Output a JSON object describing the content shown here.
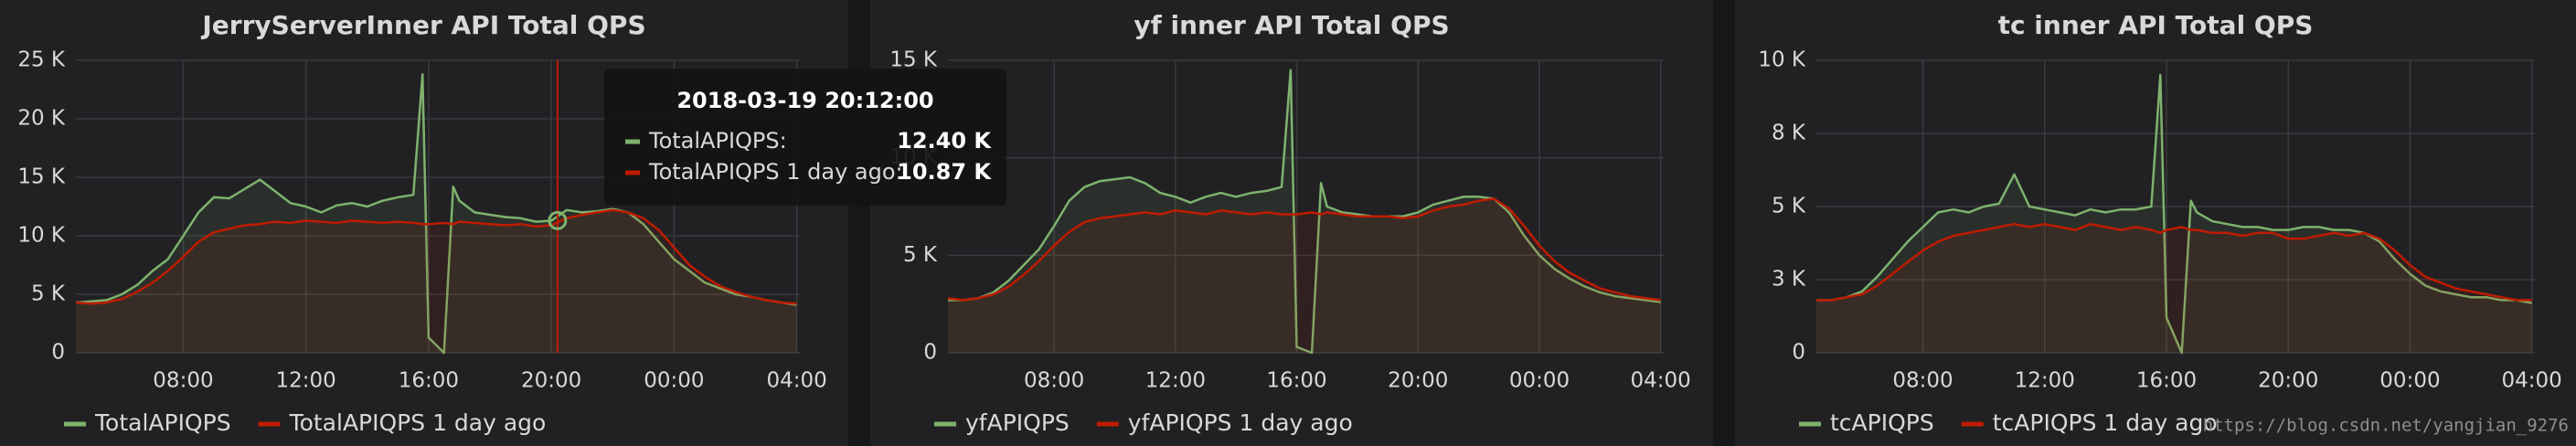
{
  "chart_data": [
    {
      "type": "line",
      "title": "JerryServerInner API Total QPS",
      "x": [
        4.5,
        5,
        5.5,
        6,
        6.5,
        7,
        7.5,
        8,
        8.5,
        9,
        9.5,
        10,
        10.5,
        11,
        11.5,
        12,
        12.5,
        13,
        13.5,
        14,
        14.5,
        15,
        15.5,
        15.8,
        16,
        16.5,
        16.8,
        17,
        17.5,
        18,
        18.5,
        19,
        19.5,
        20,
        20.5,
        21,
        21.5,
        22,
        22.5,
        23,
        23.5,
        24,
        24.5,
        25,
        25.5,
        26,
        26.5,
        27,
        27.5,
        28
      ],
      "xlim": [
        4.5,
        28.1
      ],
      "xticks": [
        {
          "value": 8,
          "label": "08:00"
        },
        {
          "value": 12,
          "label": "12:00"
        },
        {
          "value": 16,
          "label": "16:00"
        },
        {
          "value": 20,
          "label": "20:00"
        },
        {
          "value": 24,
          "label": "00:00"
        },
        {
          "value": 28,
          "label": "04:00"
        }
      ],
      "ylim": [
        0,
        25000
      ],
      "yticks": [
        0,
        {
          "value": 5000,
          "label": "5 K"
        },
        {
          "value": 10000,
          "label": "10 K"
        },
        {
          "value": 15000,
          "label": "15 K"
        },
        {
          "value": 20000,
          "label": "20 K"
        },
        {
          "value": 25000,
          "label": "25 K"
        }
      ],
      "grid": true,
      "series": [
        {
          "name": "TotalAPIQPS",
          "color": "#7eb26d",
          "values": [
            4300,
            4400,
            4500,
            5000,
            5800,
            7000,
            8000,
            10000,
            12000,
            13300,
            13200,
            14000,
            14800,
            13800,
            12800,
            12500,
            12000,
            12600,
            12800,
            12500,
            13000,
            13300,
            13500,
            23800,
            1300,
            0,
            14200,
            13000,
            12000,
            11800,
            11600,
            11500,
            11200,
            11300,
            12200,
            12000,
            12100,
            12300,
            12000,
            11000,
            9500,
            8000,
            7000,
            6000,
            5500,
            5000,
            4800,
            4500,
            4300,
            4100
          ]
        },
        {
          "name": "TotalAPIQPS 1 day ago",
          "color": "#bf1b00",
          "values": [
            4300,
            4200,
            4300,
            4600,
            5200,
            6000,
            7000,
            8200,
            9500,
            10300,
            10600,
            10900,
            11000,
            11200,
            11100,
            11300,
            11200,
            11100,
            11300,
            11200,
            11100,
            11200,
            11100,
            11000,
            11000,
            11100,
            11000,
            11200,
            11100,
            11000,
            10900,
            11000,
            10800,
            10900,
            11500,
            11800,
            12000,
            12200,
            12000,
            11500,
            10500,
            9000,
            7500,
            6500,
            5700,
            5200,
            4800,
            4500,
            4300,
            4200
          ]
        }
      ]
    },
    {
      "type": "line",
      "title": "yf inner API Total QPS",
      "x": [
        4.5,
        5,
        5.5,
        6,
        6.5,
        7,
        7.5,
        8,
        8.5,
        9,
        9.5,
        10,
        10.5,
        11,
        11.5,
        12,
        12.5,
        13,
        13.5,
        14,
        14.5,
        15,
        15.5,
        15.8,
        16,
        16.5,
        16.8,
        17,
        17.5,
        18,
        18.5,
        19,
        19.5,
        20,
        20.5,
        21,
        21.5,
        22,
        22.5,
        23,
        23.5,
        24,
        24.5,
        25,
        25.5,
        26,
        26.5,
        27,
        27.5,
        28
      ],
      "xlim": [
        4.5,
        28.1
      ],
      "xticks": [
        {
          "value": 8,
          "label": "08:00"
        },
        {
          "value": 12,
          "label": "12:00"
        },
        {
          "value": 16,
          "label": "16:00"
        },
        {
          "value": 20,
          "label": "20:00"
        },
        {
          "value": 24,
          "label": "00:00"
        },
        {
          "value": 28,
          "label": "04:00"
        }
      ],
      "ylim": [
        0,
        15000
      ],
      "yticks": [
        0,
        {
          "value": 5000,
          "label": "5 K"
        },
        {
          "value": 10000,
          "label": "10 K"
        },
        {
          "value": 15000,
          "label": "15 K"
        }
      ],
      "grid": true,
      "series": [
        {
          "name": "yfAPIQPS",
          "color": "#7eb26d",
          "values": [
            2700,
            2700,
            2800,
            3100,
            3700,
            4500,
            5300,
            6500,
            7800,
            8500,
            8800,
            8900,
            9000,
            8700,
            8200,
            8000,
            7700,
            8000,
            8200,
            8000,
            8200,
            8300,
            8500,
            14500,
            300,
            0,
            8700,
            7500,
            7200,
            7100,
            7000,
            7000,
            7000,
            7200,
            7600,
            7800,
            8000,
            8000,
            7900,
            7200,
            6000,
            5000,
            4300,
            3800,
            3400,
            3100,
            2900,
            2800,
            2700,
            2600
          ]
        },
        {
          "name": "yfAPIQPS 1 day ago",
          "color": "#bf1b00",
          "values": [
            2800,
            2700,
            2800,
            3000,
            3400,
            4000,
            4700,
            5500,
            6200,
            6700,
            6900,
            7000,
            7100,
            7200,
            7100,
            7300,
            7200,
            7100,
            7300,
            7200,
            7100,
            7200,
            7100,
            7100,
            7100,
            7200,
            7100,
            7200,
            7100,
            7000,
            7000,
            7000,
            6900,
            7000,
            7300,
            7500,
            7600,
            7800,
            7900,
            7400,
            6500,
            5500,
            4700,
            4100,
            3700,
            3300,
            3100,
            2900,
            2800,
            2700
          ]
        }
      ]
    },
    {
      "type": "line",
      "title": "tc inner API Total QPS",
      "x": [
        4.5,
        5,
        5.5,
        6,
        6.5,
        7,
        7.5,
        8,
        8.5,
        9,
        9.5,
        10,
        10.5,
        11,
        11.5,
        12,
        12.5,
        13,
        13.5,
        14,
        14.5,
        15,
        15.5,
        15.8,
        16,
        16.5,
        16.8,
        17,
        17.5,
        18,
        18.5,
        19,
        19.5,
        20,
        20.5,
        21,
        21.5,
        22,
        22.5,
        23,
        23.5,
        24,
        24.5,
        25,
        25.5,
        26,
        26.5,
        27,
        27.5,
        28
      ],
      "xlim": [
        4.5,
        28.1
      ],
      "xticks": [
        {
          "value": 8,
          "label": "08:00"
        },
        {
          "value": 12,
          "label": "12:00"
        },
        {
          "value": 16,
          "label": "16:00"
        },
        {
          "value": 20,
          "label": "20:00"
        },
        {
          "value": 24,
          "label": "00:00"
        },
        {
          "value": 28,
          "label": "04:00"
        }
      ],
      "ylim": [
        0,
        10000
      ],
      "yticks": [
        0,
        {
          "value": 2500,
          "label": "3 K"
        },
        {
          "value": 5000,
          "label": "5 K"
        },
        {
          "value": 7500,
          "label": "8 K"
        },
        {
          "value": 10000,
          "label": "10 K"
        }
      ],
      "grid": true,
      "series": [
        {
          "name": "tcAPIQPS",
          "color": "#7eb26d",
          "values": [
            1800,
            1800,
            1900,
            2100,
            2600,
            3200,
            3800,
            4300,
            4800,
            4900,
            4800,
            5000,
            5100,
            6100,
            5000,
            4900,
            4800,
            4700,
            4900,
            4800,
            4900,
            4900,
            5000,
            9500,
            1200,
            0,
            5200,
            4800,
            4500,
            4400,
            4300,
            4300,
            4200,
            4200,
            4300,
            4300,
            4200,
            4200,
            4100,
            3800,
            3200,
            2700,
            2300,
            2100,
            2000,
            1900,
            1900,
            1800,
            1800,
            1700
          ]
        },
        {
          "name": "tcAPIQPS 1 day ago",
          "color": "#bf1b00",
          "values": [
            1800,
            1800,
            1900,
            2000,
            2300,
            2700,
            3100,
            3500,
            3800,
            4000,
            4100,
            4200,
            4300,
            4400,
            4300,
            4400,
            4300,
            4200,
            4400,
            4300,
            4200,
            4300,
            4200,
            4100,
            4200,
            4300,
            4200,
            4200,
            4100,
            4100,
            4000,
            4100,
            4100,
            3900,
            3900,
            4000,
            4100,
            4000,
            4100,
            3900,
            3500,
            3000,
            2600,
            2400,
            2200,
            2100,
            2000,
            1900,
            1800,
            1800
          ]
        }
      ]
    }
  ],
  "tooltip": {
    "time": "2018-03-19 20:12:00",
    "hover_x": 20.2,
    "rows": [
      {
        "name": "TotalAPIQPS:",
        "value": "12.40 K"
      },
      {
        "name": "TotalAPIQPS 1 day ago:",
        "value": "10.87 K"
      }
    ]
  },
  "watermark": "https://blog.csdn.net/yangjian_9276"
}
